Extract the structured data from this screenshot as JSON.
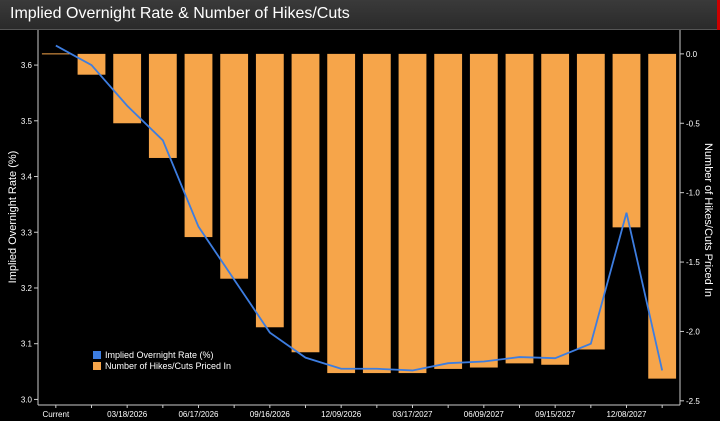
{
  "title": "Implied Overnight Rate & Number of Hikes/Cuts",
  "chart_data": {
    "type": "bar",
    "categories": [
      "Current",
      "",
      "03/18/2026",
      "",
      "06/17/2026",
      "",
      "09/16/2026",
      "",
      "12/09/2026",
      "",
      "03/17/2027",
      "",
      "06/09/2027",
      "",
      "09/15/2027",
      "",
      "12/08/2027",
      ""
    ],
    "y_left": {
      "label": "Implied Overnight Rate (%)",
      "ylim": [
        2.99,
        3.645
      ],
      "ticks": [
        3.0,
        3.1,
        3.2,
        3.3,
        3.4,
        3.5,
        3.6
      ]
    },
    "y_right": {
      "label": "Number of Hikes/Cuts Priced In",
      "ylim": [
        -2.53,
        0.1
      ],
      "ticks": [
        "0.0",
        "-0.5",
        "-1.0",
        "-1.5",
        "-2.0",
        "-2.5"
      ]
    },
    "series": [
      {
        "name": "Implied Overnight Rate (%)",
        "type": "line",
        "axis": "left",
        "color": "#3d7de0",
        "values": [
          3.635,
          3.6,
          3.527,
          3.465,
          3.31,
          3.215,
          3.12,
          3.075,
          3.055,
          3.055,
          3.052,
          3.065,
          3.068,
          3.076,
          3.074,
          3.1,
          3.335,
          3.052
        ]
      },
      {
        "name": "Number of Hikes/Cuts Priced In",
        "type": "bar",
        "axis": "right",
        "color": "#f6a54a",
        "values": [
          0,
          -0.15,
          -0.5,
          -0.75,
          -1.32,
          -1.62,
          -1.97,
          -2.15,
          -2.3,
          -2.3,
          -2.3,
          -2.27,
          -2.26,
          -2.23,
          -2.24,
          -2.13,
          -1.25,
          -2.34
        ]
      }
    ],
    "legend": {
      "position": "bottom-left"
    },
    "grid": false
  }
}
